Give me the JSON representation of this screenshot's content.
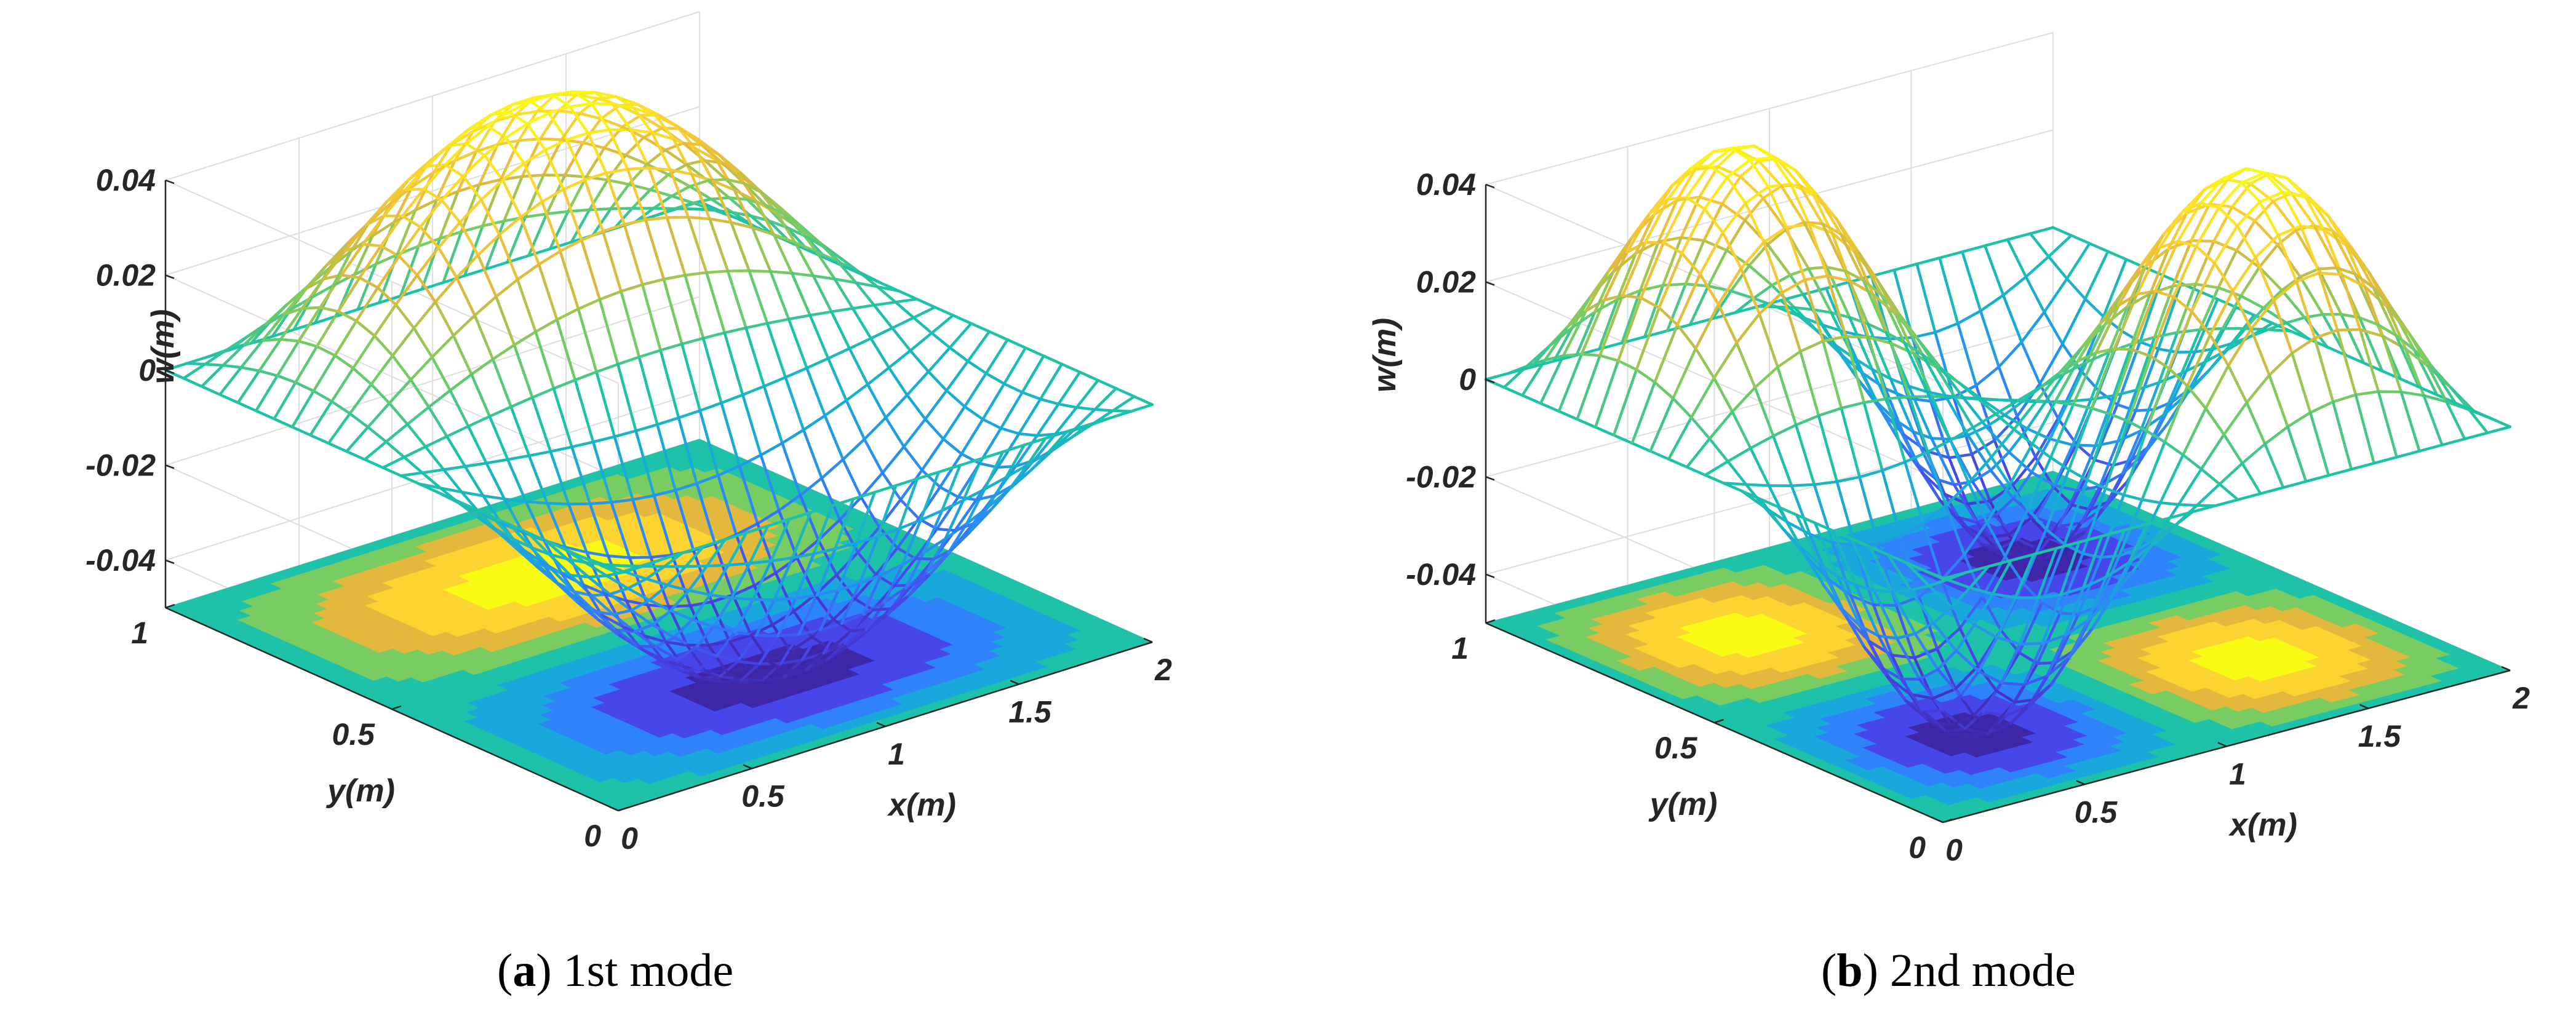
{
  "chart_data": [
    {
      "type": "surface+contour",
      "caption": {
        "label": "a",
        "text": "1st mode"
      },
      "mode": [
        1,
        2
      ],
      "xlabel": "x(m)",
      "ylabel": "y(m)",
      "zlabel": "w(m)",
      "xlim": [
        0,
        2
      ],
      "ylim": [
        0,
        1
      ],
      "zlim": [
        -0.05,
        0.04
      ],
      "amplitude": 0.05,
      "xticks": [
        "0",
        "0.5",
        "1",
        "1.5",
        "2"
      ],
      "yticks": [
        "0",
        "0.5",
        "1"
      ],
      "zticks": [
        "-0.04",
        "-0.02",
        "0",
        "0.02",
        "0.04"
      ],
      "grid": true,
      "colormap": "parula"
    },
    {
      "type": "surface+contour",
      "caption": {
        "label": "b",
        "text": "2nd mode"
      },
      "mode": [
        2,
        2
      ],
      "xlabel": "x(m)",
      "ylabel": "y(m)",
      "zlabel": "w(m)",
      "xlim": [
        0,
        2
      ],
      "ylim": [
        0,
        1
      ],
      "zlim": [
        -0.05,
        0.04
      ],
      "amplitude": 0.05,
      "xticks": [
        "0",
        "0.5",
        "1",
        "1.5",
        "2"
      ],
      "yticks": [
        "0",
        "0.5",
        "1"
      ],
      "zticks": [
        "-0.04",
        "-0.02",
        "0",
        "0.02",
        "0.04"
      ],
      "grid": true,
      "colormap": "parula"
    }
  ],
  "colors": [
    "#3e26a8",
    "#4746eb",
    "#2f83f9",
    "#19a8db",
    "#1ec2a8",
    "#78cc62",
    "#e2b93d",
    "#fbd432",
    "#f9fb15"
  ]
}
